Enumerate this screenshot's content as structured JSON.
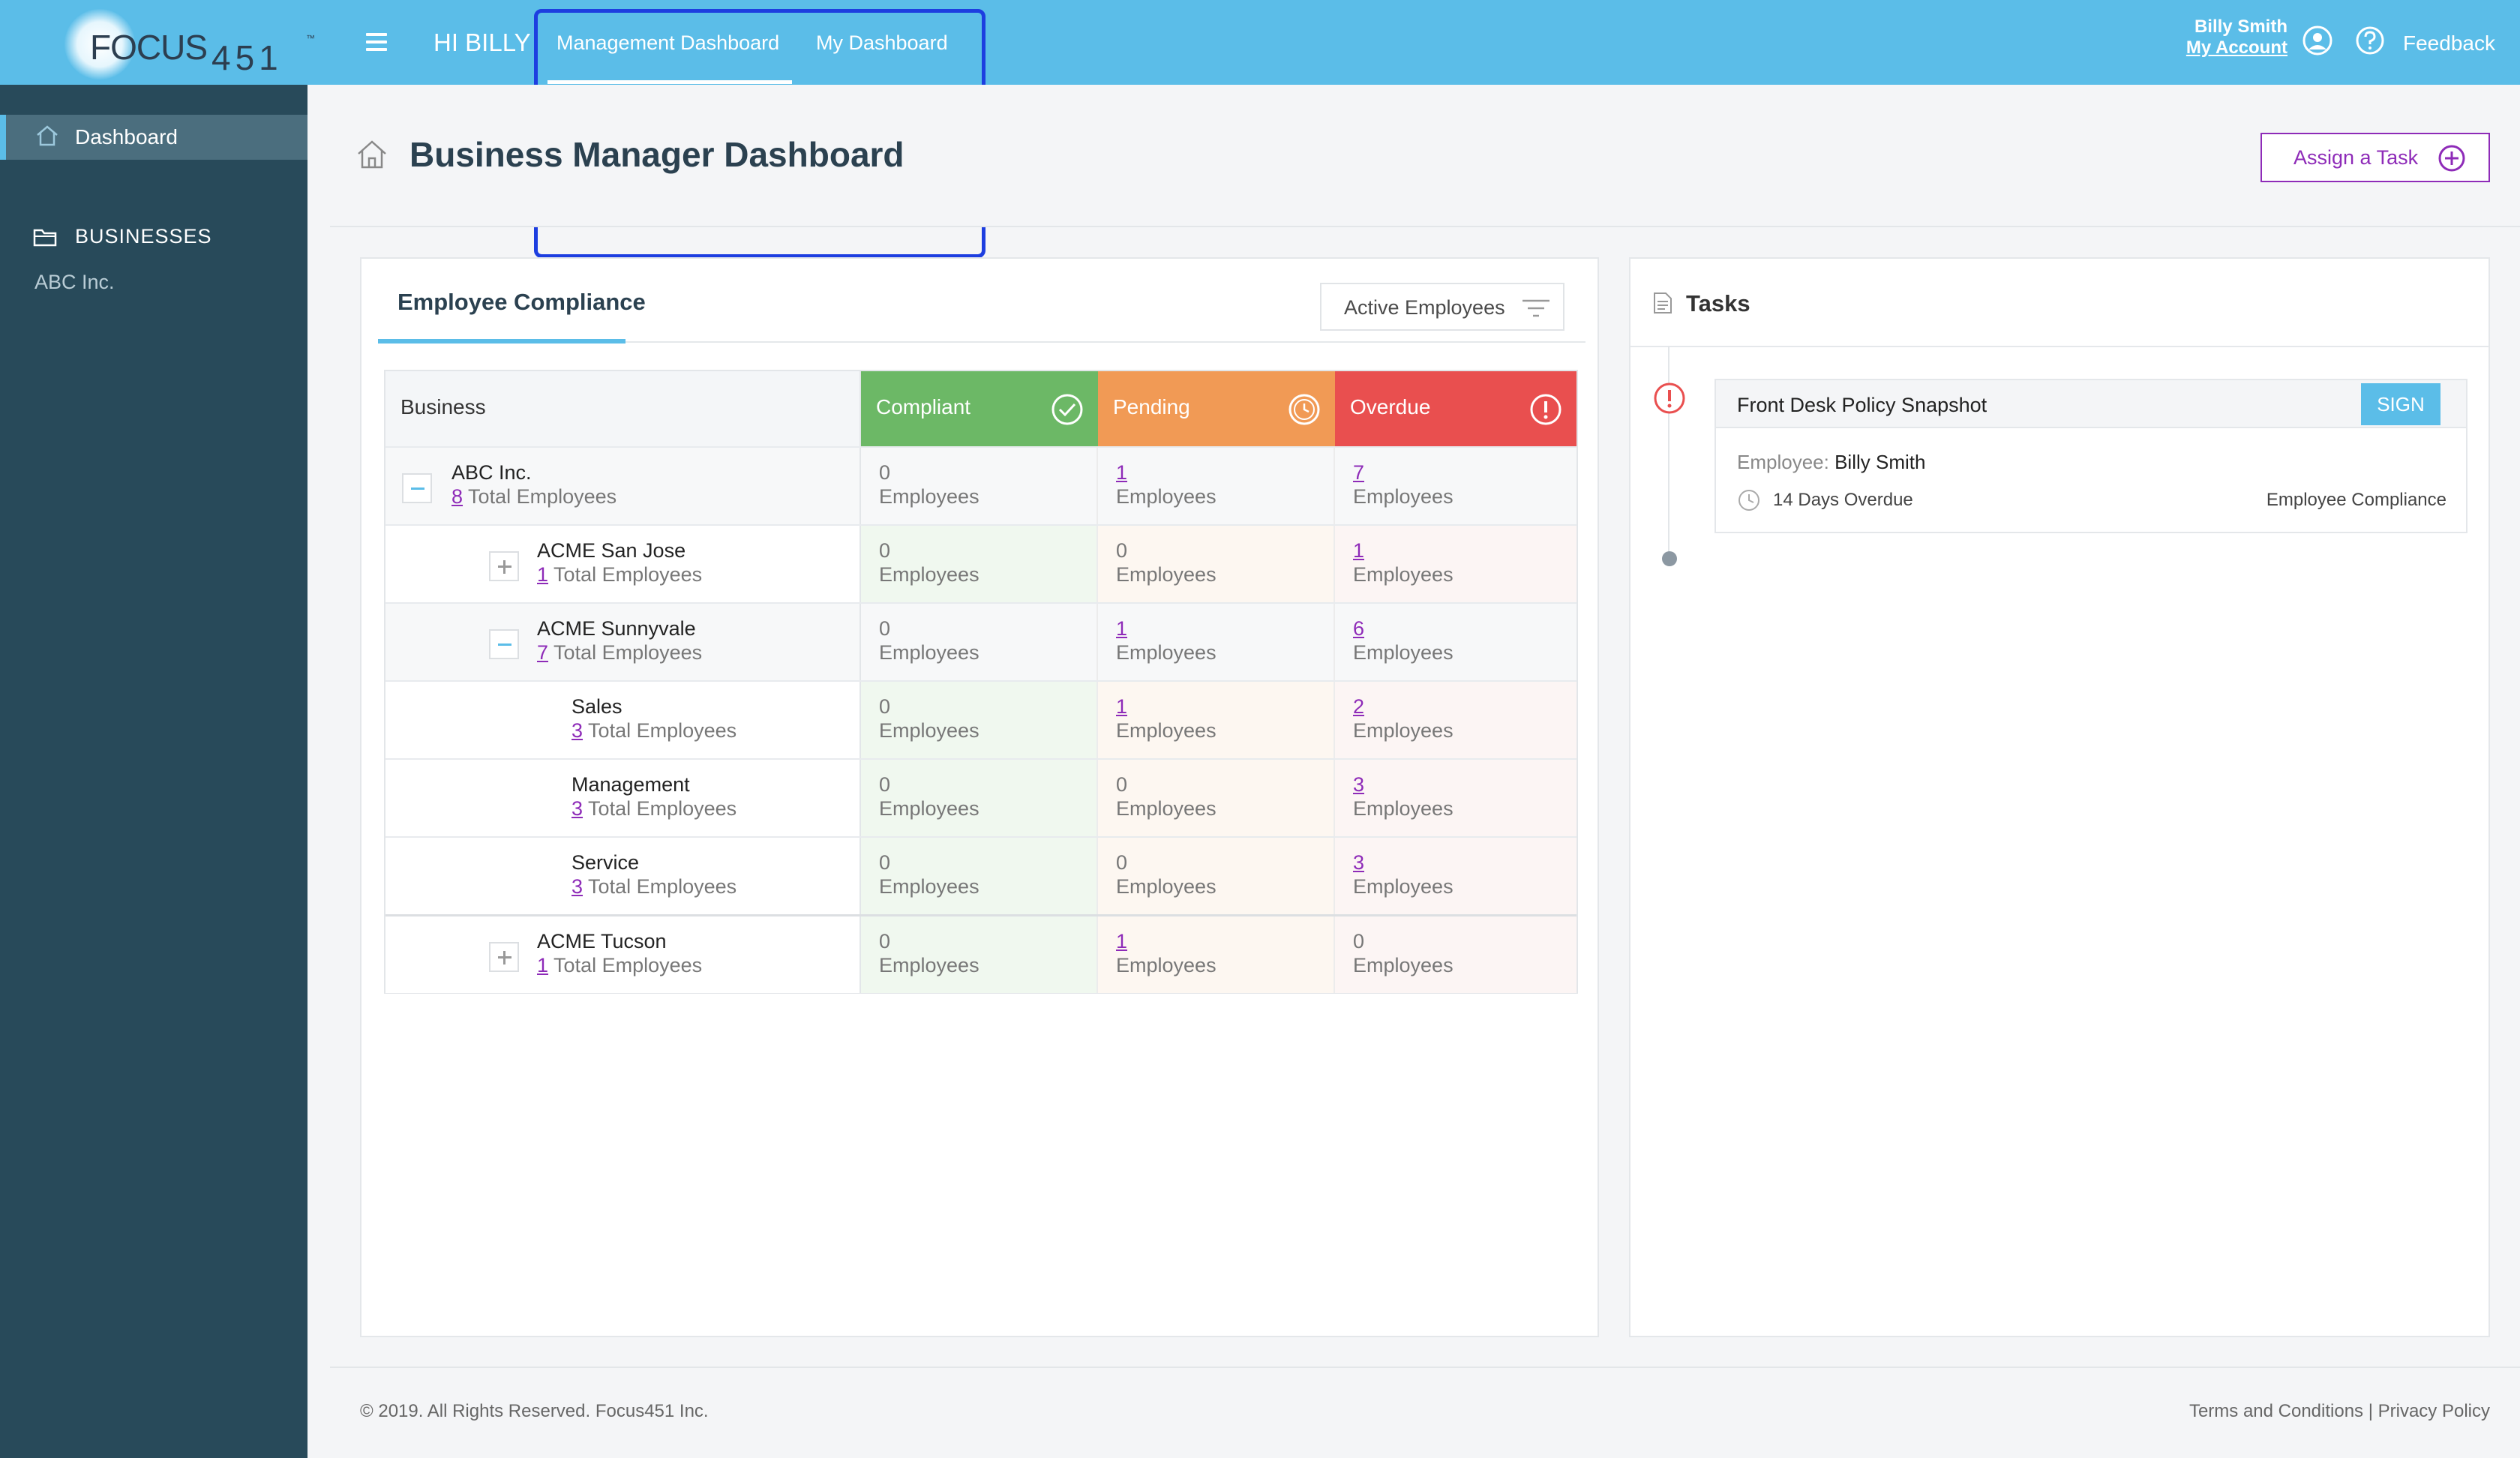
{
  "topbar": {
    "logo_text": "FOCUS",
    "logo_number": "451",
    "logo_tm": "™",
    "greeting": "HI BILLY",
    "tabs": [
      {
        "label": "Management Dashboard",
        "active": true
      },
      {
        "label": "My Dashboard",
        "active": false
      }
    ],
    "user_name": "Billy Smith",
    "my_account": "My Account",
    "feedback": "Feedback",
    "icons": [
      "menu-icon",
      "account-icon",
      "help-icon"
    ]
  },
  "sidebar": {
    "items": [
      {
        "label": "Dashboard",
        "icon": "home-icon",
        "active": true
      }
    ],
    "section_label": "BUSINESSES",
    "section_icon": "folder-icon",
    "businesses": [
      "ABC Inc."
    ]
  },
  "header": {
    "title": "Business Manager Dashboard",
    "assign_label": "Assign a Task"
  },
  "compliance": {
    "title": "Employee Compliance",
    "filter_label": "Active Employees",
    "columns": {
      "business": "Business",
      "compliant": "Compliant",
      "pending": "Pending",
      "overdue": "Overdue"
    },
    "unit": "Employees",
    "total_suffix": "Total Employees",
    "rows": [
      {
        "name": "ABC Inc.",
        "total": "8",
        "compliant": "0",
        "pending": "1",
        "overdue": "7"
      },
      {
        "name": "ACME San Jose",
        "total": "1",
        "compliant": "0",
        "pending": "0",
        "overdue": "1"
      },
      {
        "name": "ACME Sunnyvale",
        "total": "7",
        "compliant": "0",
        "pending": "1",
        "overdue": "6"
      },
      {
        "name": "Sales",
        "total": "3",
        "compliant": "0",
        "pending": "1",
        "overdue": "2"
      },
      {
        "name": "Management",
        "total": "3",
        "compliant": "0",
        "pending": "0",
        "overdue": "3"
      },
      {
        "name": "Service",
        "total": "3",
        "compliant": "0",
        "pending": "0",
        "overdue": "3"
      },
      {
        "name": "ACME Tucson",
        "total": "1",
        "compliant": "0",
        "pending": "1",
        "overdue": "0"
      }
    ]
  },
  "tasks": {
    "title": "Tasks",
    "items": [
      {
        "name": "Front Desk Policy Snapshot",
        "action": "SIGN",
        "employee_label": "Employee:",
        "employee": "Billy Smith",
        "due": "14 Days Overdue",
        "category": "Employee Compliance"
      }
    ]
  },
  "footer": {
    "copyright": "© 2019. All Rights Reserved. Focus451 Inc.",
    "links": "Terms and Conditions | Privacy Policy"
  },
  "colors": {
    "topbar": "#5bbde8",
    "sidebar": "#284a5a",
    "compliant": "#6cb866",
    "pending": "#f19a55",
    "overdue": "#e94f4f",
    "accent": "#8e2bb8"
  }
}
